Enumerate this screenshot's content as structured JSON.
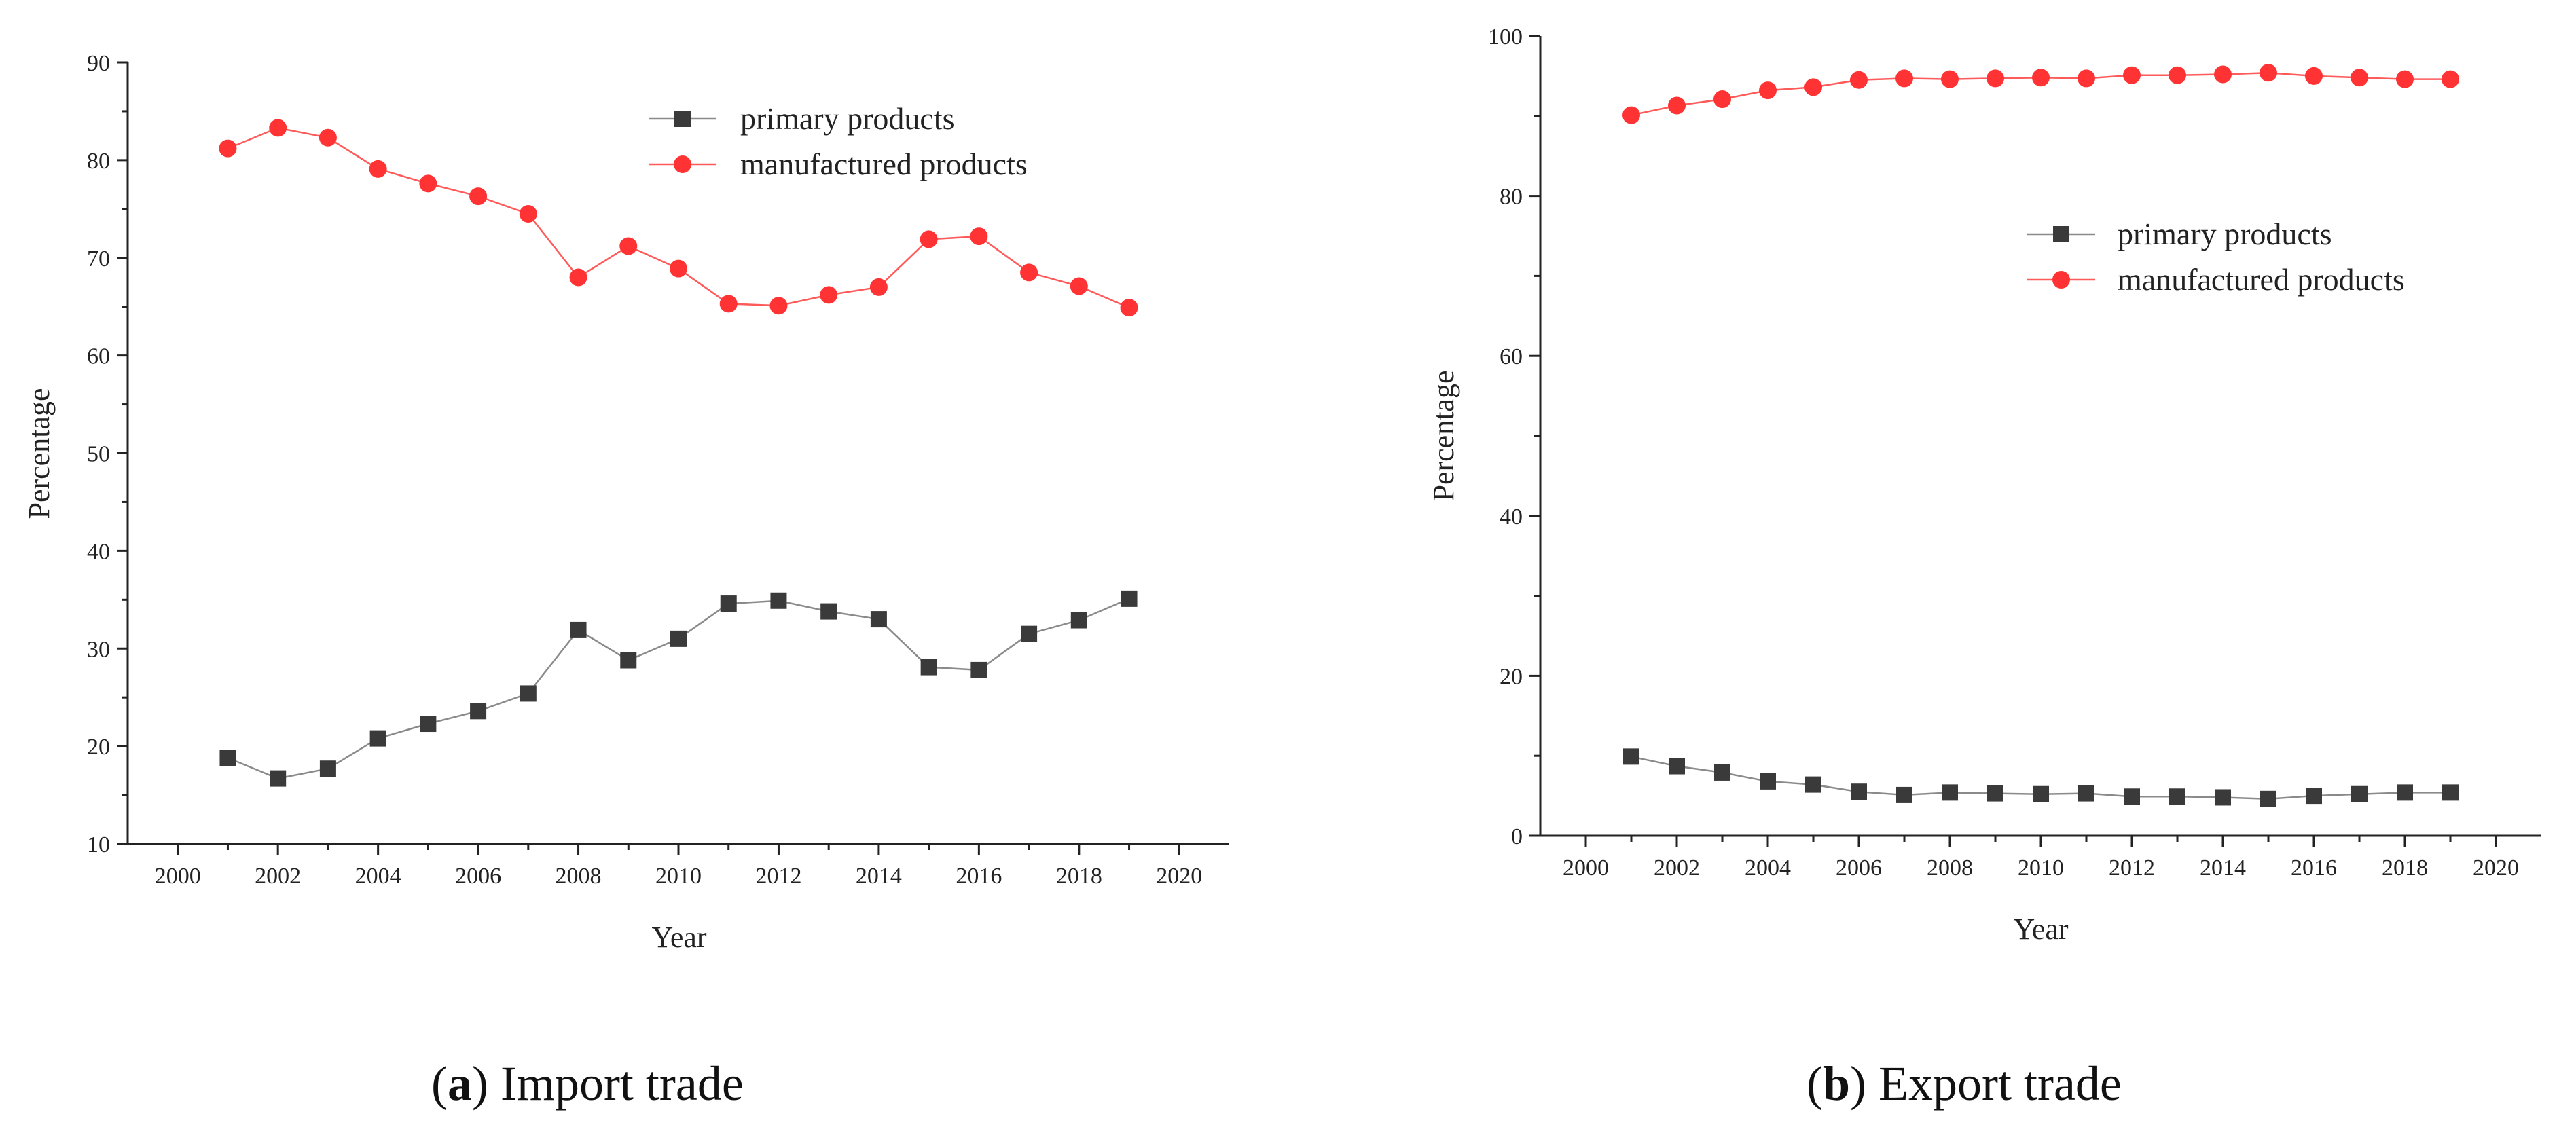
{
  "chart_data": [
    {
      "type": "line",
      "title": "",
      "xlabel": "Year",
      "ylabel": "Percentage",
      "xlim": [
        1999,
        2021
      ],
      "ylim": [
        10,
        90
      ],
      "xticks": [
        2000,
        2002,
        2004,
        2006,
        2008,
        2010,
        2012,
        2014,
        2016,
        2018,
        2020
      ],
      "yticks": [
        10,
        20,
        30,
        40,
        50,
        60,
        70,
        80,
        90
      ],
      "legend_position": "top-right",
      "x": [
        2001,
        2002,
        2003,
        2004,
        2005,
        2006,
        2007,
        2008,
        2009,
        2010,
        2011,
        2012,
        2013,
        2014,
        2015,
        2016,
        2017,
        2018,
        2019
      ],
      "series": [
        {
          "name": "primary products",
          "color": "#3a3a3a",
          "marker": "square",
          "values": [
            18.8,
            16.7,
            17.7,
            20.8,
            22.3,
            23.6,
            25.4,
            31.9,
            28.8,
            31.0,
            34.6,
            34.9,
            33.8,
            33.0,
            28.1,
            27.8,
            31.5,
            32.9,
            35.1
          ]
        },
        {
          "name": "manufactured products",
          "color": "#ff3333",
          "marker": "circle",
          "values": [
            81.2,
            83.3,
            82.3,
            79.1,
            77.6,
            76.3,
            74.5,
            68.0,
            71.2,
            68.9,
            65.3,
            65.1,
            66.2,
            67.0,
            71.9,
            72.2,
            68.5,
            67.1,
            64.9
          ]
        }
      ]
    },
    {
      "type": "line",
      "title": "",
      "xlabel": "Year",
      "ylabel": "Percentage",
      "xlim": [
        1999,
        2021
      ],
      "ylim": [
        0,
        100
      ],
      "xticks": [
        2000,
        2002,
        2004,
        2006,
        2008,
        2010,
        2012,
        2014,
        2016,
        2018,
        2020
      ],
      "yticks": [
        0,
        20,
        40,
        60,
        80,
        100
      ],
      "legend_position": "center-right",
      "x": [
        2001,
        2002,
        2003,
        2004,
        2005,
        2006,
        2007,
        2008,
        2009,
        2010,
        2011,
        2012,
        2013,
        2014,
        2015,
        2016,
        2017,
        2018,
        2019
      ],
      "series": [
        {
          "name": "primary products",
          "color": "#3a3a3a",
          "marker": "square",
          "values": [
            9.9,
            8.7,
            7.9,
            6.8,
            6.4,
            5.5,
            5.1,
            5.4,
            5.3,
            5.2,
            5.3,
            4.9,
            4.9,
            4.8,
            4.6,
            5.0,
            5.2,
            5.4,
            5.4
          ]
        },
        {
          "name": "manufactured products",
          "color": "#ff3333",
          "marker": "circle",
          "values": [
            90.1,
            91.3,
            92.1,
            93.2,
            93.6,
            94.5,
            94.7,
            94.6,
            94.7,
            94.8,
            94.7,
            95.1,
            95.1,
            95.2,
            95.4,
            95.0,
            94.8,
            94.6,
            94.6
          ]
        }
      ]
    }
  ],
  "captions": [
    {
      "letter": "a",
      "text": " Import trade"
    },
    {
      "letter": "b",
      "text": " Export trade"
    }
  ]
}
